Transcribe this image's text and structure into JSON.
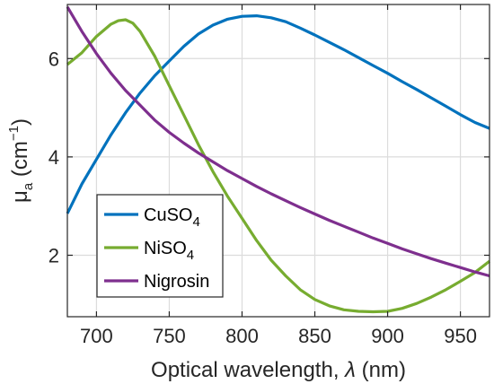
{
  "chart_data": {
    "type": "line",
    "xlabel": {
      "main": "Optical wavelength, ",
      "symbol": "λ",
      "unit": " (nm)"
    },
    "ylabel": {
      "main": "μ",
      "sub": "a",
      "unit_open": " (cm",
      "unit_sup": "−1",
      "unit_close": ")"
    },
    "xlim": [
      680,
      970
    ],
    "ylim": [
      0.75,
      7.1
    ],
    "xticks": [
      700,
      750,
      800,
      850,
      900,
      950
    ],
    "yticks": [
      2,
      4,
      6
    ],
    "grid": true,
    "legend_position": "bottom-left",
    "series": [
      {
        "name": "CuSO",
        "name_sub": "4",
        "color": "#0072BD",
        "x": [
          680,
          690,
          700,
          710,
          720,
          730,
          740,
          750,
          760,
          770,
          780,
          790,
          800,
          810,
          820,
          830,
          840,
          850,
          860,
          870,
          880,
          890,
          900,
          910,
          920,
          930,
          940,
          950,
          960,
          970
        ],
        "y": [
          2.85,
          3.45,
          3.95,
          4.45,
          4.9,
          5.3,
          5.65,
          5.95,
          6.25,
          6.5,
          6.68,
          6.8,
          6.86,
          6.87,
          6.83,
          6.75,
          6.62,
          6.48,
          6.33,
          6.18,
          6.02,
          5.86,
          5.7,
          5.53,
          5.37,
          5.2,
          5.03,
          4.86,
          4.7,
          4.58
        ]
      },
      {
        "name": "NiSO",
        "name_sub": "4",
        "color": "#77AC30",
        "x": [
          680,
          690,
          700,
          710,
          715,
          720,
          725,
          730,
          740,
          750,
          760,
          770,
          780,
          790,
          800,
          810,
          820,
          830,
          840,
          850,
          860,
          870,
          880,
          890,
          900,
          910,
          920,
          930,
          940,
          950,
          960,
          970
        ],
        "y": [
          5.88,
          6.12,
          6.45,
          6.7,
          6.77,
          6.79,
          6.72,
          6.55,
          6.05,
          5.45,
          4.85,
          4.25,
          3.7,
          3.2,
          2.75,
          2.3,
          1.9,
          1.58,
          1.3,
          1.1,
          0.97,
          0.89,
          0.86,
          0.85,
          0.86,
          0.92,
          1.02,
          1.15,
          1.3,
          1.47,
          1.65,
          1.88
        ]
      },
      {
        "name": "Nigrosin",
        "name_sub": "",
        "color": "#7E2F8E",
        "x": [
          680,
          690,
          700,
          710,
          720,
          730,
          740,
          750,
          760,
          770,
          780,
          790,
          800,
          810,
          820,
          830,
          840,
          850,
          860,
          870,
          880,
          890,
          900,
          910,
          920,
          930,
          940,
          950,
          960,
          970
        ],
        "y": [
          7.05,
          6.55,
          6.1,
          5.7,
          5.35,
          5.05,
          4.75,
          4.5,
          4.28,
          4.08,
          3.9,
          3.72,
          3.56,
          3.4,
          3.25,
          3.11,
          2.97,
          2.84,
          2.71,
          2.59,
          2.47,
          2.35,
          2.24,
          2.13,
          2.03,
          1.93,
          1.84,
          1.75,
          1.66,
          1.58
        ]
      }
    ]
  }
}
